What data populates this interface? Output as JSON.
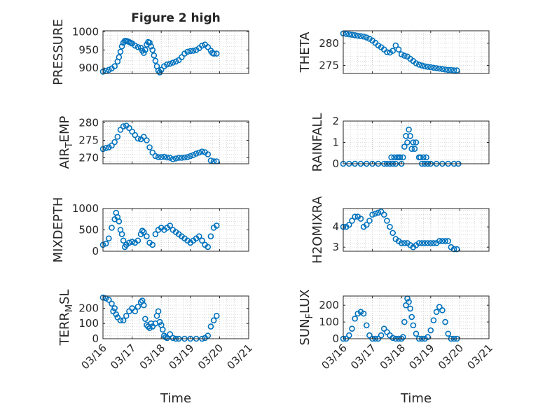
{
  "figure_title": "Figure 2 high",
  "colors": {
    "marker": "#0072BD",
    "axis": "#262626",
    "grid": "#b8b8b8",
    "background": "#ffffff"
  },
  "shared_xaxis": {
    "ticks": [
      "03/16",
      "03/17",
      "03/18",
      "03/19",
      "03/20",
      "03/21"
    ],
    "xlabel": "Time",
    "xlim_days": [
      16,
      21
    ]
  },
  "chart_data": [
    {
      "type": "scatter",
      "ylabel": "PRESSURE",
      "ylim": [
        885,
        1003
      ],
      "yticks": [
        900,
        950,
        1000
      ],
      "grid": true,
      "x": [
        16.0,
        16.1,
        16.2,
        16.3,
        16.4,
        16.5,
        16.55,
        16.6,
        16.65,
        16.7,
        16.75,
        16.8,
        16.85,
        16.9,
        16.95,
        17.0,
        17.1,
        17.2,
        17.3,
        17.35,
        17.4,
        17.45,
        17.5,
        17.55,
        17.6,
        17.65,
        17.7,
        17.75,
        17.8,
        17.85,
        17.9,
        17.95,
        18.0,
        18.1,
        18.2,
        18.3,
        18.4,
        18.5,
        18.6,
        18.7,
        18.8,
        18.9,
        19.0,
        19.1,
        19.2,
        19.3,
        19.4,
        19.5,
        19.6,
        19.7,
        19.75,
        19.8,
        19.9
      ],
      "values": [
        890,
        892,
        895,
        899,
        905,
        918,
        930,
        945,
        960,
        970,
        975,
        975,
        974,
        972,
        970,
        968,
        962,
        958,
        956,
        948,
        942,
        950,
        965,
        972,
        970,
        960,
        950,
        935,
        920,
        905,
        893,
        888,
        895,
        905,
        910,
        912,
        915,
        918,
        922,
        930,
        940,
        945,
        947,
        948,
        950,
        955,
        962,
        965,
        958,
        948,
        942,
        940,
        940
      ]
    },
    {
      "type": "scatter",
      "ylabel": "THETA",
      "ylim": [
        273.2,
        282.8
      ],
      "yticks": [
        275,
        280
      ],
      "grid": true,
      "x": [
        16.0,
        16.1,
        16.2,
        16.3,
        16.4,
        16.5,
        16.6,
        16.7,
        16.8,
        16.9,
        17.0,
        17.1,
        17.2,
        17.3,
        17.4,
        17.5,
        17.6,
        17.7,
        17.8,
        17.9,
        18.0,
        18.1,
        18.2,
        18.3,
        18.4,
        18.5,
        18.6,
        18.7,
        18.8,
        18.9,
        19.0,
        19.1,
        19.2,
        19.3,
        19.4,
        19.5,
        19.6,
        19.7,
        19.8,
        19.9
      ],
      "values": [
        282.2,
        282.1,
        282.0,
        281.9,
        281.8,
        281.7,
        281.6,
        281.5,
        281.3,
        281.0,
        280.6,
        280.1,
        279.5,
        279.1,
        278.6,
        278.0,
        277.9,
        278.3,
        279.5,
        278.6,
        277.5,
        277.2,
        277.0,
        276.5,
        276.0,
        275.5,
        275.2,
        275.0,
        274.8,
        274.7,
        274.6,
        274.5,
        274.4,
        274.3,
        274.2,
        274.1,
        274.0,
        274.0,
        273.9,
        273.9
      ]
    },
    {
      "type": "scatter",
      "ylabel": "AIR_TEMP",
      "ylim": [
        268.3,
        280.5
      ],
      "yticks": [
        270,
        275,
        280
      ],
      "grid": true,
      "x": [
        16.0,
        16.1,
        16.2,
        16.3,
        16.4,
        16.5,
        16.6,
        16.7,
        16.8,
        16.9,
        17.0,
        17.1,
        17.2,
        17.3,
        17.4,
        17.5,
        17.6,
        17.7,
        17.8,
        17.9,
        18.0,
        18.1,
        18.2,
        18.3,
        18.4,
        18.5,
        18.6,
        18.7,
        18.8,
        18.9,
        19.0,
        19.1,
        19.2,
        19.3,
        19.4,
        19.5,
        19.6,
        19.7,
        19.8,
        19.9
      ],
      "values": [
        272.5,
        272.8,
        273.0,
        273.5,
        274.5,
        276.0,
        278.0,
        279.0,
        279.2,
        278.5,
        277.5,
        276.5,
        275.5,
        275.3,
        276.0,
        275.0,
        273.0,
        271.5,
        270.5,
        270.2,
        270.2,
        270.3,
        270.1,
        270.0,
        269.6,
        269.8,
        270.0,
        270.0,
        270.1,
        270.2,
        270.5,
        270.8,
        271.2,
        271.5,
        271.8,
        271.6,
        271.0,
        269.2,
        269.0,
        269.0
      ]
    },
    {
      "type": "scatter",
      "ylabel": "RAINFALL",
      "ylim": [
        0,
        2
      ],
      "yticks": [
        0,
        1,
        2
      ],
      "grid": true,
      "x": [
        16.0,
        16.2,
        16.4,
        16.6,
        16.8,
        17.0,
        17.2,
        17.4,
        17.5,
        17.6,
        17.65,
        17.7,
        17.75,
        17.8,
        17.85,
        17.9,
        17.95,
        18.0,
        18.05,
        18.1,
        18.15,
        18.2,
        18.25,
        18.3,
        18.35,
        18.4,
        18.45,
        18.5,
        18.6,
        18.65,
        18.7,
        18.75,
        18.8,
        18.85,
        18.9,
        19.0,
        19.2,
        19.4,
        19.6,
        19.8,
        19.95
      ],
      "values": [
        0,
        0,
        0,
        0,
        0,
        0,
        0,
        0,
        0,
        0,
        0.3,
        0,
        0.3,
        0,
        0.3,
        0.3,
        0.3,
        0,
        0.3,
        0.8,
        1.3,
        1.0,
        1.6,
        1.3,
        0.7,
        1.0,
        0.7,
        1.0,
        0.3,
        0.3,
        0,
        0.3,
        0,
        0.3,
        0,
        0,
        0,
        0,
        0,
        0,
        0
      ]
    },
    {
      "type": "scatter",
      "ylabel": "MIXDEPTH",
      "ylim": [
        0,
        1000
      ],
      "yticks": [
        0,
        500,
        1000
      ],
      "grid": true,
      "x": [
        16.0,
        16.1,
        16.2,
        16.3,
        16.4,
        16.45,
        16.5,
        16.55,
        16.6,
        16.65,
        16.7,
        16.75,
        16.8,
        16.9,
        17.0,
        17.1,
        17.2,
        17.3,
        17.35,
        17.4,
        17.5,
        17.6,
        17.7,
        17.8,
        17.9,
        18.0,
        18.1,
        18.2,
        18.3,
        18.4,
        18.5,
        18.6,
        18.7,
        18.8,
        18.9,
        19.0,
        19.1,
        19.2,
        19.3,
        19.4,
        19.5,
        19.6,
        19.7,
        19.8,
        19.9
      ],
      "values": [
        150,
        180,
        300,
        550,
        750,
        900,
        800,
        700,
        500,
        400,
        250,
        100,
        150,
        200,
        220,
        200,
        250,
        400,
        480,
        450,
        350,
        200,
        150,
        400,
        500,
        550,
        500,
        550,
        600,
        500,
        450,
        400,
        350,
        300,
        250,
        200,
        250,
        300,
        350,
        250,
        150,
        100,
        350,
        550,
        600
      ]
    },
    {
      "type": "scatter",
      "ylabel": "H2OMIXRA",
      "ylim": [
        2.8,
        4.9
      ],
      "yticks": [
        3,
        4
      ],
      "grid": true,
      "x": [
        16.0,
        16.1,
        16.2,
        16.3,
        16.4,
        16.5,
        16.6,
        16.7,
        16.8,
        16.9,
        17.0,
        17.1,
        17.2,
        17.3,
        17.4,
        17.5,
        17.6,
        17.7,
        17.8,
        17.9,
        18.0,
        18.1,
        18.2,
        18.3,
        18.4,
        18.5,
        18.6,
        18.7,
        18.8,
        18.9,
        19.0,
        19.1,
        19.2,
        19.3,
        19.4,
        19.5,
        19.6,
        19.7,
        19.8,
        19.9
      ],
      "values": [
        4.0,
        4.0,
        4.1,
        4.3,
        4.5,
        4.5,
        4.4,
        4.0,
        4.1,
        4.3,
        4.6,
        4.65,
        4.7,
        4.75,
        4.6,
        4.3,
        4.0,
        3.7,
        3.4,
        3.3,
        3.2,
        3.2,
        3.2,
        3.1,
        3.0,
        3.1,
        3.2,
        3.2,
        3.2,
        3.2,
        3.2,
        3.2,
        3.2,
        3.3,
        3.3,
        3.3,
        3.3,
        3.0,
        2.9,
        2.9
      ]
    },
    {
      "type": "scatter",
      "ylabel": "TERR_MSL",
      "ylim": [
        0,
        280
      ],
      "yticks": [
        0,
        100,
        200
      ],
      "grid": true,
      "x": [
        16.0,
        16.1,
        16.2,
        16.3,
        16.35,
        16.4,
        16.45,
        16.5,
        16.6,
        16.7,
        16.8,
        16.9,
        17.0,
        17.1,
        17.2,
        17.3,
        17.35,
        17.4,
        17.45,
        17.5,
        17.55,
        17.6,
        17.65,
        17.7,
        17.8,
        17.85,
        17.9,
        17.95,
        18.0,
        18.05,
        18.1,
        18.15,
        18.2,
        18.3,
        18.4,
        18.5,
        18.6,
        18.8,
        19.0,
        19.2,
        19.4,
        19.5,
        19.6,
        19.7,
        19.8,
        19.9
      ],
      "values": [
        270,
        265,
        255,
        230,
        180,
        200,
        160,
        140,
        120,
        120,
        150,
        180,
        200,
        180,
        210,
        240,
        250,
        220,
        130,
        90,
        80,
        70,
        100,
        80,
        100,
        150,
        180,
        110,
        90,
        60,
        20,
        10,
        5,
        30,
        5,
        0,
        0,
        0,
        0,
        0,
        0,
        5,
        20,
        80,
        120,
        150
      ]
    },
    {
      "type": "scatter",
      "ylabel": "SUN_FLUX",
      "ylim": [
        0,
        255
      ],
      "yticks": [
        0,
        100,
        200
      ],
      "grid": true,
      "x": [
        16.0,
        16.1,
        16.2,
        16.3,
        16.4,
        16.5,
        16.6,
        16.7,
        16.8,
        16.9,
        17.0,
        17.1,
        17.2,
        17.3,
        17.4,
        17.5,
        17.6,
        17.7,
        17.8,
        17.9,
        18.0,
        18.05,
        18.1,
        18.15,
        18.2,
        18.25,
        18.3,
        18.35,
        18.4,
        18.5,
        18.6,
        18.7,
        18.8,
        18.9,
        19.0,
        19.1,
        19.2,
        19.3,
        19.4,
        19.5,
        19.6,
        19.7,
        19.8,
        19.9
      ],
      "values": [
        0,
        0,
        20,
        60,
        120,
        150,
        160,
        150,
        80,
        20,
        0,
        0,
        0,
        20,
        60,
        40,
        20,
        5,
        0,
        0,
        0,
        10,
        100,
        200,
        240,
        220,
        180,
        130,
        80,
        30,
        0,
        0,
        0,
        10,
        50,
        110,
        160,
        190,
        170,
        100,
        30,
        0,
        0,
        0
      ]
    }
  ]
}
